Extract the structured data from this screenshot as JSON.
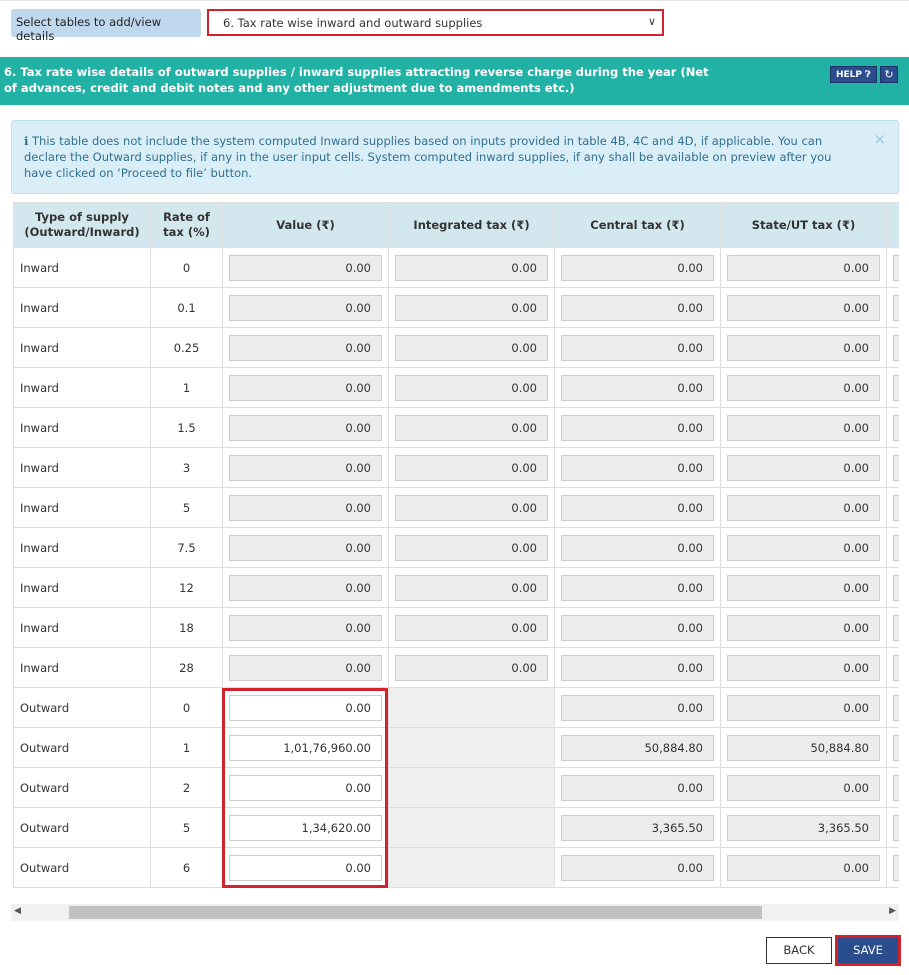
{
  "selector": {
    "label": "Select tables to add/view details",
    "value": "6. Tax rate wise inward and outward supplies"
  },
  "banner": {
    "title": "6. Tax rate wise details of outward supplies / inward supplies attracting reverse charge during the year (Net of advances, credit and debit notes and any other adjustment due to amendments etc.)",
    "help": "HELP",
    "help_icon": "question-circle-icon",
    "refresh_icon": "refresh-icon"
  },
  "info": {
    "text": "This table does not include the system computed Inward supplies based on inputs provided in table 4B, 4C and 4D, if applicable. You can declare the Outward supplies, if any in the user input cells. System computed inward supplies, if any shall be available on preview after you have clicked on ‘Proceed to file’ button.",
    "close": "×"
  },
  "table": {
    "headers": [
      "Type of supply (Outward/Inward)",
      "Rate of tax (%)",
      "Value (₹)",
      "Integrated tax (₹)",
      "Central tax (₹)",
      "State/UT tax (₹)",
      ""
    ],
    "rows": [
      {
        "type": "Inward",
        "rate": "0",
        "value": "0.00",
        "igst": "0.00",
        "cgst": "0.00",
        "sgst": "0.00"
      },
      {
        "type": "Inward",
        "rate": "0.1",
        "value": "0.00",
        "igst": "0.00",
        "cgst": "0.00",
        "sgst": "0.00"
      },
      {
        "type": "Inward",
        "rate": "0.25",
        "value": "0.00",
        "igst": "0.00",
        "cgst": "0.00",
        "sgst": "0.00"
      },
      {
        "type": "Inward",
        "rate": "1",
        "value": "0.00",
        "igst": "0.00",
        "cgst": "0.00",
        "sgst": "0.00"
      },
      {
        "type": "Inward",
        "rate": "1.5",
        "value": "0.00",
        "igst": "0.00",
        "cgst": "0.00",
        "sgst": "0.00"
      },
      {
        "type": "Inward",
        "rate": "3",
        "value": "0.00",
        "igst": "0.00",
        "cgst": "0.00",
        "sgst": "0.00"
      },
      {
        "type": "Inward",
        "rate": "5",
        "value": "0.00",
        "igst": "0.00",
        "cgst": "0.00",
        "sgst": "0.00"
      },
      {
        "type": "Inward",
        "rate": "7.5",
        "value": "0.00",
        "igst": "0.00",
        "cgst": "0.00",
        "sgst": "0.00"
      },
      {
        "type": "Inward",
        "rate": "12",
        "value": "0.00",
        "igst": "0.00",
        "cgst": "0.00",
        "sgst": "0.00"
      },
      {
        "type": "Inward",
        "rate": "18",
        "value": "0.00",
        "igst": "0.00",
        "cgst": "0.00",
        "sgst": "0.00"
      },
      {
        "type": "Inward",
        "rate": "28",
        "value": "0.00",
        "igst": "0.00",
        "cgst": "0.00",
        "sgst": "0.00"
      },
      {
        "type": "Outward",
        "rate": "0",
        "value": "0.00",
        "cgst": "0.00",
        "sgst": "0.00"
      },
      {
        "type": "Outward",
        "rate": "1",
        "value": "1,01,76,960.00",
        "cgst": "50,884.80",
        "sgst": "50,884.80"
      },
      {
        "type": "Outward",
        "rate": "2",
        "value": "0.00",
        "cgst": "0.00",
        "sgst": "0.00"
      },
      {
        "type": "Outward",
        "rate": "5",
        "value": "1,34,620.00",
        "cgst": "3,365.50",
        "sgst": "3,365.50"
      },
      {
        "type": "Outward",
        "rate": "6",
        "value": "0.00",
        "cgst": "0.00",
        "sgst": "0.00"
      }
    ]
  },
  "actions": {
    "back": "BACK",
    "save": "SAVE"
  }
}
